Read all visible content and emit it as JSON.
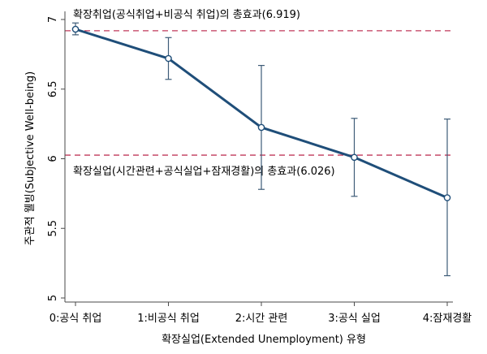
{
  "chart_data": {
    "type": "line",
    "xlabel": "확장실업(Extended Unemployment) 유형",
    "ylabel": "주관적 웰빙(Subjective Well-being)",
    "ylim": [
      5,
      7
    ],
    "yticks": [
      "5",
      "5.5",
      "6",
      "6.5",
      "7"
    ],
    "ytick_values": [
      5,
      5.5,
      6,
      6.5,
      7
    ],
    "categories": [
      "0:공식 취업",
      "1:비공식 취업",
      "2:시간 관련",
      "3:공식 실업",
      "4:잠재경활"
    ],
    "series": [
      {
        "values": [
          6.93,
          6.72,
          6.225,
          6.01,
          5.72
        ],
        "ci_low": [
          6.89,
          6.57,
          5.78,
          5.73,
          5.16
        ],
        "ci_high": [
          6.975,
          6.87,
          6.67,
          6.29,
          6.285
        ],
        "color": "#1f4e79"
      }
    ],
    "reference_lines": [
      {
        "value": 6.919,
        "label": "확장취업(공식취업+비공식 취업)의 총효과(6.919)",
        "color": "#c0395a"
      },
      {
        "value": 6.026,
        "label": "확장실업(시간관련+공식실업+잠재경활)의 총효과(6.026)",
        "color": "#c0395a"
      }
    ],
    "grid": false,
    "legend": "none"
  }
}
